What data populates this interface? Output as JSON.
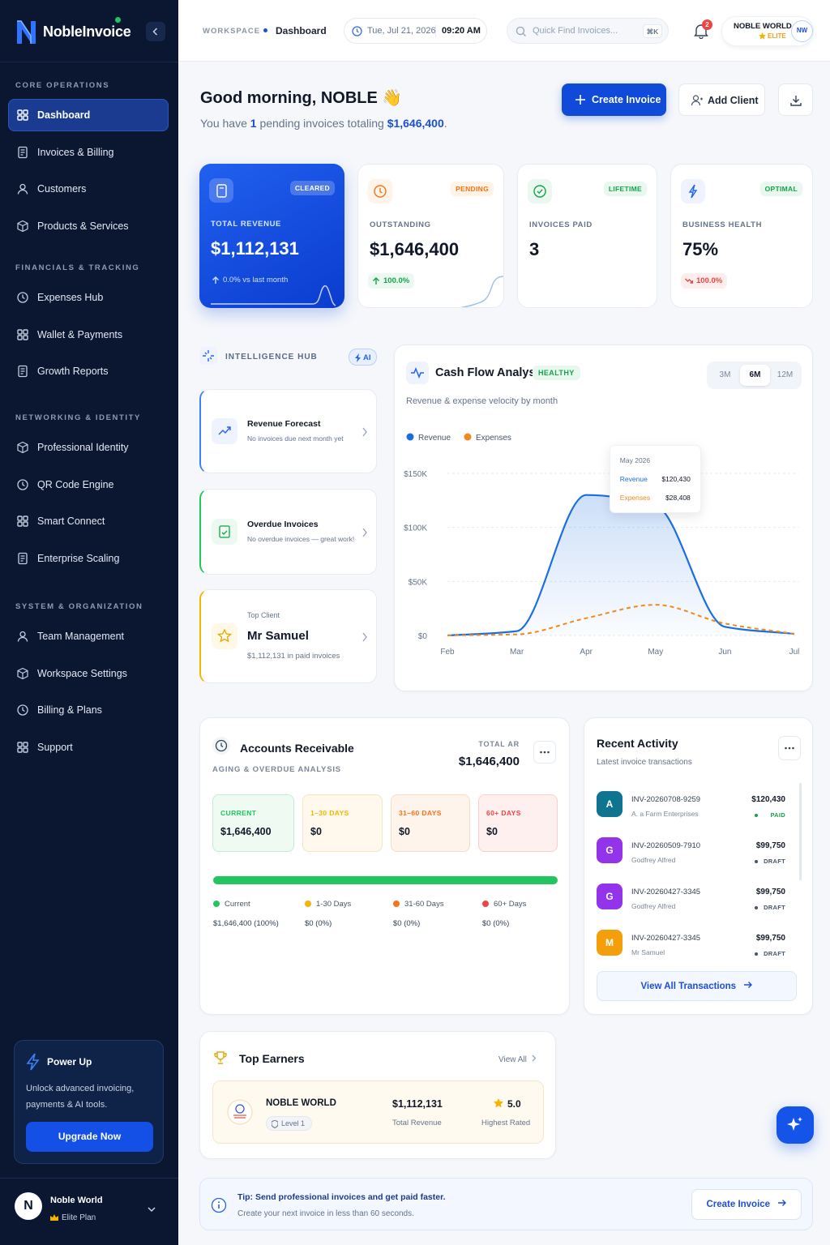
{
  "sidebar": {
    "brand": "NobleInvoice",
    "sections": [
      {
        "title": "CORE OPERATIONS",
        "items": [
          "Dashboard",
          "Invoices & Billing",
          "Customers",
          "Products & Services"
        ]
      },
      {
        "title": "FINANCIALS & TRACKING",
        "items": [
          "Expenses Hub",
          "Wallet & Payments",
          "Growth Reports"
        ]
      },
      {
        "title": "NETWORKING & IDENTITY",
        "items": [
          "Professional Identity",
          "QR Code Engine",
          "Smart Connect",
          "Enterprise Scaling"
        ]
      },
      {
        "title": "SYSTEM & ORGANIZATION",
        "items": [
          "Team Management",
          "Workspace Settings",
          "Billing & Plans",
          "Support"
        ]
      }
    ],
    "promo": {
      "title": "Power Up",
      "text": "Unlock advanced invoicing, payments & AI tools.",
      "button": "Upgrade Now"
    },
    "user": {
      "initial": "N",
      "name": "Noble World",
      "plan": "Elite Plan"
    }
  },
  "topbar": {
    "workspace": "WORKSPACE",
    "page": "Dashboard",
    "date": "Tue, Jul 21, 2026",
    "time": "09:20 AM",
    "search": "Quick Find Invoices...",
    "shortcut": "⌘K",
    "notifications": "2",
    "account": "NOBLE WORLD",
    "tier": "ELITE",
    "avatar": "NW"
  },
  "greeting": {
    "title": "Good morning, NOBLE 👋",
    "before": "You have",
    "count": "1",
    "middle": "pending invoices totaling",
    "amount": "$1,646,400",
    "end": "."
  },
  "actions": {
    "create": "Create Invoice",
    "add_client": "Add Client"
  },
  "stats": [
    {
      "badge": "CLEARED",
      "label": "TOTAL REVENUE",
      "value": "$1,112,131",
      "change": "0.0% vs last month"
    },
    {
      "badge": "PENDING",
      "label": "OUTSTANDING",
      "value": "$1,646,400",
      "change": "100.0%"
    },
    {
      "badge": "LIFETIME",
      "label": "INVOICES PAID",
      "value": "3"
    },
    {
      "badge": "OPTIMAL",
      "label": "BUSINESS HEALTH",
      "value": "75%",
      "change": "100.0%"
    }
  ],
  "intelligence": {
    "title": "INTELLIGENCE HUB",
    "badge": "AI",
    "cards": [
      {
        "title": "Revenue Forecast",
        "text": "No invoices due next month yet"
      },
      {
        "title": "Overdue Invoices",
        "text": "No overdue invoices — great work!"
      },
      {
        "kicker": "Top Client",
        "title": "Mr Samuel",
        "text": "$1,112,131 in paid invoices"
      }
    ]
  },
  "cash_flow": {
    "title": "Cash Flow Analysis",
    "badge": "HEALTHY",
    "subtitle": "Revenue & expense velocity by month",
    "ranges": [
      "3M",
      "6M",
      "12M"
    ],
    "active_range": "6M",
    "chart": {
      "type": "line",
      "categories": [
        "Feb",
        "Mar",
        "Apr",
        "May",
        "Jun",
        "Jul"
      ],
      "series": [
        {
          "name": "Revenue",
          "color": "#1a6fe0",
          "area": true,
          "values": [
            0,
            4000,
            130000,
            120430,
            8000,
            1500
          ]
        },
        {
          "name": "Expenses",
          "color": "#f08a1c",
          "dashed": true,
          "values": [
            0,
            1000,
            16000,
            28408,
            11000,
            1500
          ]
        }
      ],
      "ylim": [
        0,
        150000
      ],
      "yticks": [
        {
          "value": 0,
          "label": "$0"
        },
        {
          "value": 50000,
          "label": "$50K"
        },
        {
          "value": 100000,
          "label": "$100K"
        },
        {
          "value": 150000,
          "label": "$150K"
        }
      ],
      "grid": true,
      "tooltip": {
        "title": "May 2026",
        "values": [
          "$120,430",
          "$28,408"
        ]
      }
    }
  },
  "receivables": {
    "title": "Accounts Receivable",
    "subtitle": "AGING & OVERDUE ANALYSIS",
    "total_label": "TOTAL AR",
    "total": "$1,646,400",
    "buckets": [
      {
        "label": "CURRENT",
        "value": "$1,646,400",
        "legend": "Current",
        "detail": "$1,646,400 (100%)",
        "share": 100,
        "color": "#22c55e"
      },
      {
        "label": "1–30 DAYS",
        "value": "$0",
        "legend": "1-30 Days",
        "detail": "$0 (0%)",
        "share": 0,
        "color": "#f5b400"
      },
      {
        "label": "31–60 DAYS",
        "value": "$0",
        "legend": "31-60 Days",
        "detail": "$0 (0%)",
        "share": 0,
        "color": "#f97316"
      },
      {
        "label": "60+ DAYS",
        "value": "$0",
        "legend": "60+ Days",
        "detail": "$0 (0%)",
        "share": 0,
        "color": "#ef4444"
      }
    ]
  },
  "activity": {
    "title": "Recent Activity",
    "subtitle": "Latest invoice transactions",
    "items": [
      {
        "initial": "A",
        "id": "INV-20260708-9259",
        "client": "A. a Farm Enterprises",
        "amount": "$120,430",
        "status": "PAID",
        "color": "#0e7490",
        "status_color": "#16a34a"
      },
      {
        "initial": "G",
        "id": "INV-20260509-7910",
        "client": "Godfrey Alfred",
        "amount": "$99,750",
        "status": "DRAFT",
        "color": "#9333ea",
        "status_color": "#475569"
      },
      {
        "initial": "G",
        "id": "INV-20260427-3345",
        "client": "Godfrey Alfred",
        "amount": "$99,750",
        "status": "DRAFT",
        "color": "#9333ea",
        "status_color": "#475569"
      },
      {
        "initial": "M",
        "id": "INV-20260427-3345",
        "client": "Mr Samuel",
        "amount": "$99,750",
        "status": "DRAFT",
        "color": "#f59e0b",
        "status_color": "#475569"
      }
    ],
    "button": "View All Transactions"
  },
  "earners": {
    "title": "Top Earners",
    "link": "View All",
    "rows": [
      {
        "name": "NOBLE WORLD",
        "level": "Level 1",
        "amount": "$1,112,131",
        "amount_label": "Total Revenue",
        "rating": "5.0",
        "rating_label": "Highest Rated"
      }
    ]
  },
  "tip": {
    "title": "Tip: Send professional invoices and get paid faster.",
    "text": "Create your next invoice in less than 60 seconds.",
    "button": "Create Invoice"
  }
}
